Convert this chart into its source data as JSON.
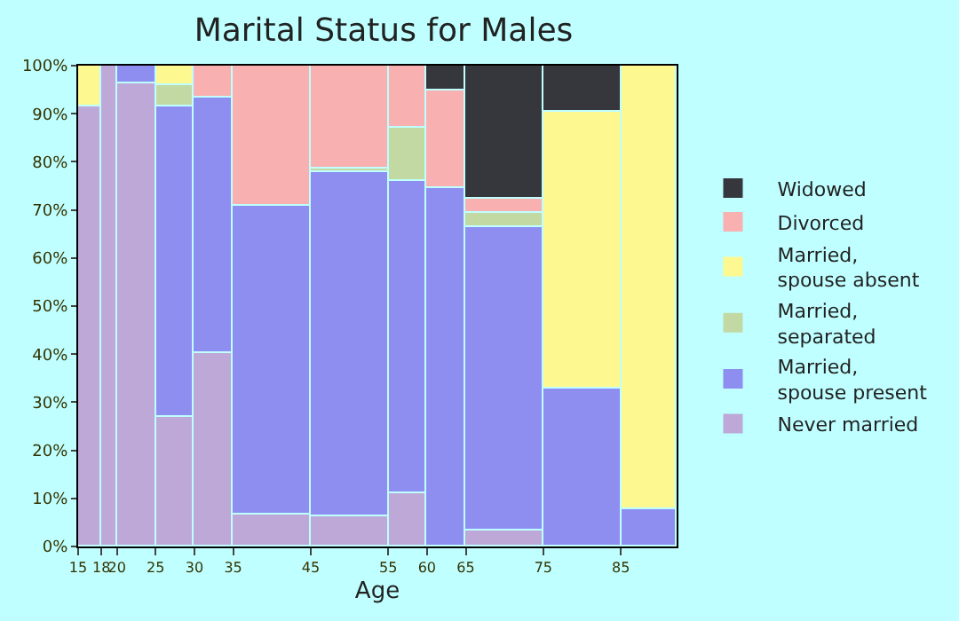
{
  "chart_data": {
    "type": "bar",
    "stacked": true,
    "title": "Marital Status for Males",
    "xlabel": "Age",
    "x": [
      16.5,
      19,
      22.5,
      27.5,
      32.5,
      40,
      50,
      57.5,
      62.5,
      70,
      80,
      88.6
    ],
    "series": [
      {
        "name": "Never married",
        "color": "#bda8d8",
        "values": [
          91.4,
          100,
          96.2,
          26.8,
          40.4,
          6.6,
          6.2,
          11.0,
          null,
          3.3,
          null,
          null
        ]
      },
      {
        "name": "Married, spouse present",
        "color": "#8e8ef0",
        "values": [
          null,
          null,
          3.8,
          64.6,
          52.9,
          64.3,
          71.6,
          65.0,
          74.5,
          63.2,
          32.7,
          7.7
        ]
      },
      {
        "name": "Married, separated",
        "color": "#c2d9a4",
        "values": [
          null,
          null,
          null,
          4.4,
          null,
          null,
          0.8,
          11.0,
          null,
          2.9,
          null,
          null
        ]
      },
      {
        "name": "Married, spouse absent",
        "color": "#fef890",
        "values": [
          8.6,
          null,
          null,
          4.2,
          null,
          null,
          null,
          null,
          null,
          null,
          57.6,
          92.3
        ]
      },
      {
        "name": "Divorced",
        "color": "#f8b0b0",
        "values": [
          null,
          null,
          null,
          null,
          6.7,
          29.1,
          21.4,
          13.0,
          20.2,
          2.9,
          null,
          null
        ]
      },
      {
        "name": "Widowed",
        "color": "#36373d",
        "values": [
          null,
          null,
          null,
          null,
          null,
          null,
          null,
          null,
          5.3,
          27.7,
          9.7,
          null
        ]
      }
    ],
    "xlim": [
      15,
      92.2
    ],
    "xticks": [
      15,
      18,
      20,
      25,
      30,
      35,
      45,
      55,
      60,
      65,
      75,
      85
    ],
    "ylim": [
      0,
      100
    ],
    "yticks": [
      {
        "value": 0,
        "label": "0%"
      },
      {
        "value": 10,
        "label": "10%"
      },
      {
        "value": 20,
        "label": "20%"
      },
      {
        "value": 30,
        "label": "30%"
      },
      {
        "value": 40,
        "label": "40%"
      },
      {
        "value": 50,
        "label": "50%"
      },
      {
        "value": 60,
        "label": "60%"
      },
      {
        "value": 70,
        "label": "70%"
      },
      {
        "value": 80,
        "label": "80%"
      },
      {
        "value": 90,
        "label": "90%"
      },
      {
        "value": 100,
        "label": "100%"
      }
    ],
    "legend": "right"
  }
}
